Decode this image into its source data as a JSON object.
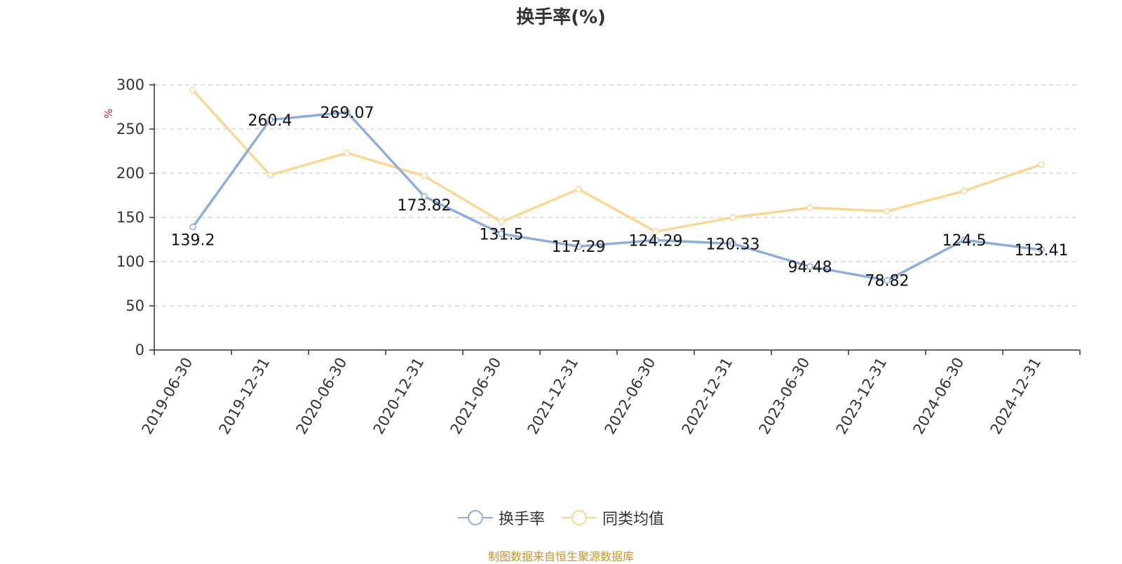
{
  "chart_data": {
    "type": "line",
    "title": "换手率(%)",
    "ylabel": "%",
    "categories": [
      "2019-06-30",
      "2019-12-31",
      "2020-06-30",
      "2020-12-31",
      "2021-06-30",
      "2021-12-31",
      "2022-06-30",
      "2022-12-31",
      "2023-06-30",
      "2023-12-31",
      "2024-06-30",
      "2024-12-31"
    ],
    "ylim": [
      0,
      300
    ],
    "yticks": [
      0,
      50,
      100,
      150,
      200,
      250,
      300
    ],
    "grid": true,
    "legend_position": "bottom",
    "series": [
      {
        "name": "换手率",
        "color": "#8eaed8",
        "values": [
          139.2,
          260.4,
          269.07,
          173.82,
          131.5,
          117.29,
          124.29,
          120.33,
          94.48,
          78.82,
          124.5,
          113.41
        ],
        "labels": [
          "139.2",
          "260.4",
          "269.07",
          "173.82",
          "131.5",
          "117.29",
          "124.29",
          "120.33",
          "94.48",
          "78.82",
          "124.5",
          "113.41"
        ]
      },
      {
        "name": "同类均值",
        "color": "#fad797",
        "values": [
          294,
          198,
          223,
          197,
          145,
          182,
          134,
          150,
          161,
          157,
          180,
          210
        ]
      }
    ]
  },
  "source_note": "制图数据来自恒生聚源数据库",
  "colors": {
    "axis": "#333333",
    "grid": "#cccccc",
    "ylabel": "#e02020",
    "source": "#c8932b"
  }
}
